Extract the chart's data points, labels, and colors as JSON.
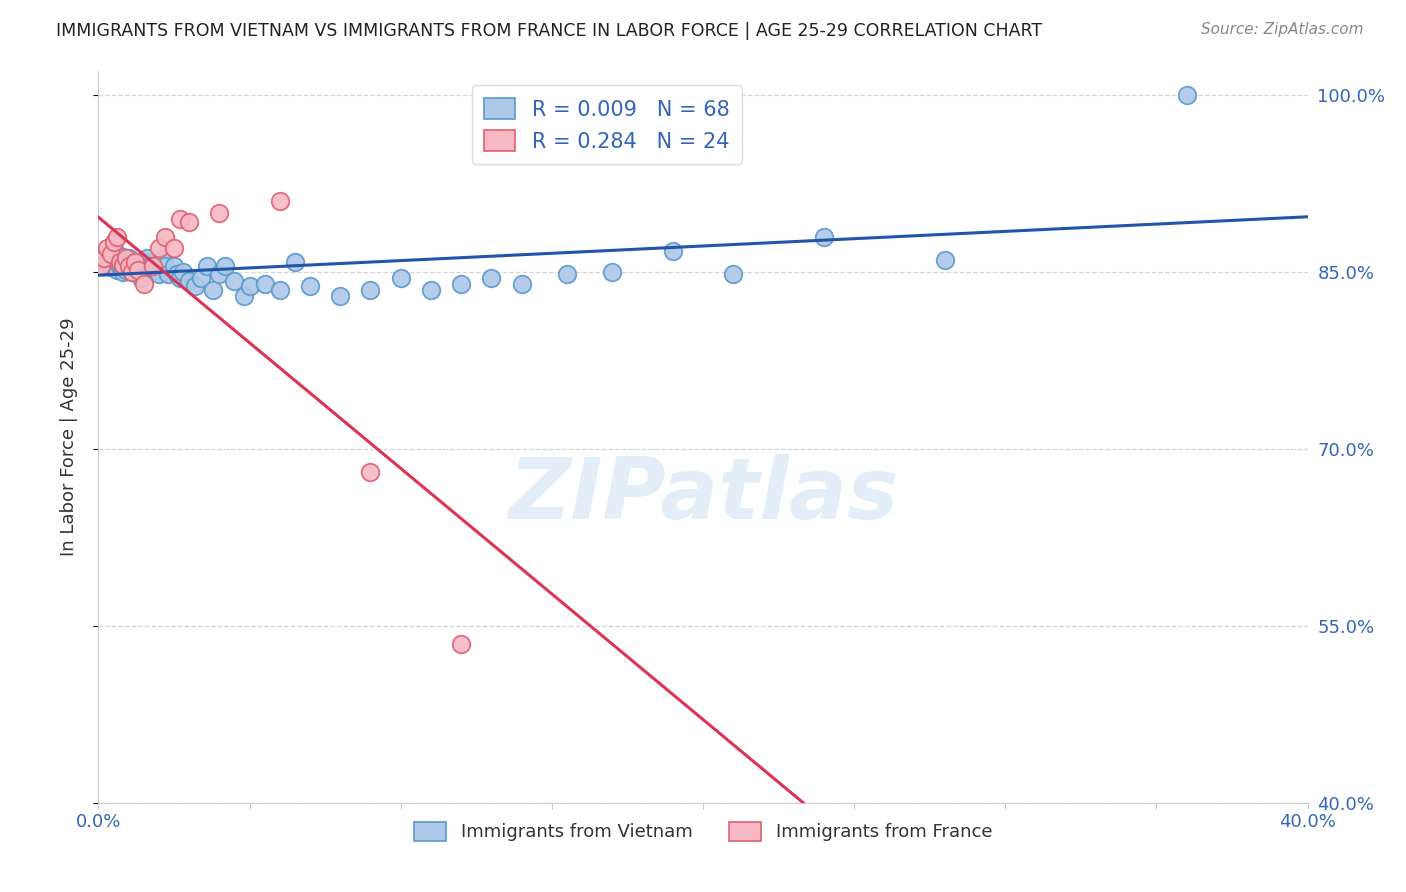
{
  "title": "IMMIGRANTS FROM VIETNAM VS IMMIGRANTS FROM FRANCE IN LABOR FORCE | AGE 25-29 CORRELATION CHART",
  "source": "Source: ZipAtlas.com",
  "ylabel": "In Labor Force | Age 25-29",
  "xlim": [
    0.0,
    0.4
  ],
  "ylim": [
    0.4,
    1.02
  ],
  "yticks": [
    0.4,
    0.55,
    0.7,
    0.85,
    1.0
  ],
  "yticklabels": [
    "40.0%",
    "55.0%",
    "70.0%",
    "85.0%",
    "100.0%"
  ],
  "xtick_positions": [
    0.0,
    0.05,
    0.1,
    0.15,
    0.2,
    0.25,
    0.3,
    0.35,
    0.4
  ],
  "xtick_labels": [
    "0.0%",
    "",
    "",
    "",
    "",
    "",
    "",
    "",
    "40.0%"
  ],
  "vietnam_color_face": "#adc8e8",
  "vietnam_color_edge": "#5a9acc",
  "france_color_face": "#f5b8c4",
  "france_color_edge": "#e06070",
  "R_vietnam": 0.009,
  "N_vietnam": 68,
  "R_france": 0.284,
  "N_france": 24,
  "trend_vietnam_color": "#2255aa",
  "trend_france_color": "#dd3355",
  "legend_label_vietnam": "Immigrants from Vietnam",
  "legend_label_france": "Immigrants from France",
  "watermark": "ZIPatlas",
  "background_color": "#ffffff",
  "grid_color": "#cccccc",
  "title_color": "#222222",
  "label_color": "#333333",
  "tick_color": "#3366bb",
  "vietnam_x": [
    0.001,
    0.002,
    0.002,
    0.003,
    0.003,
    0.004,
    0.004,
    0.005,
    0.005,
    0.005,
    0.006,
    0.006,
    0.007,
    0.007,
    0.007,
    0.008,
    0.008,
    0.008,
    0.009,
    0.009,
    0.01,
    0.01,
    0.011,
    0.011,
    0.012,
    0.013,
    0.014,
    0.015,
    0.016,
    0.017,
    0.018,
    0.019,
    0.02,
    0.021,
    0.022,
    0.023,
    0.025,
    0.026,
    0.027,
    0.028,
    0.03,
    0.032,
    0.034,
    0.036,
    0.038,
    0.04,
    0.042,
    0.045,
    0.048,
    0.05,
    0.055,
    0.06,
    0.065,
    0.07,
    0.08,
    0.09,
    0.1,
    0.11,
    0.12,
    0.13,
    0.14,
    0.155,
    0.17,
    0.19,
    0.21,
    0.24,
    0.28,
    0.36
  ],
  "vietnam_y": [
    0.86,
    0.855,
    0.862,
    0.855,
    0.858,
    0.854,
    0.86,
    0.856,
    0.862,
    0.858,
    0.852,
    0.865,
    0.854,
    0.86,
    0.856,
    0.85,
    0.858,
    0.863,
    0.852,
    0.86,
    0.856,
    0.862,
    0.85,
    0.855,
    0.858,
    0.852,
    0.845,
    0.858,
    0.862,
    0.855,
    0.855,
    0.852,
    0.848,
    0.86,
    0.855,
    0.848,
    0.855,
    0.848,
    0.845,
    0.85,
    0.842,
    0.838,
    0.845,
    0.855,
    0.835,
    0.848,
    0.855,
    0.842,
    0.83,
    0.838,
    0.84,
    0.835,
    0.858,
    0.838,
    0.83,
    0.835,
    0.845,
    0.835,
    0.84,
    0.845,
    0.84,
    0.848,
    0.85,
    0.868,
    0.848,
    0.88,
    0.86,
    1.0
  ],
  "france_x": [
    0.001,
    0.002,
    0.003,
    0.004,
    0.005,
    0.006,
    0.007,
    0.008,
    0.009,
    0.01,
    0.011,
    0.012,
    0.013,
    0.015,
    0.018,
    0.02,
    0.022,
    0.025,
    0.027,
    0.03,
    0.04,
    0.06,
    0.09,
    0.12
  ],
  "france_y": [
    0.855,
    0.862,
    0.87,
    0.865,
    0.875,
    0.88,
    0.858,
    0.856,
    0.862,
    0.855,
    0.85,
    0.858,
    0.852,
    0.84,
    0.855,
    0.87,
    0.88,
    0.87,
    0.895,
    0.892,
    0.9,
    0.91,
    0.68,
    0.535
  ]
}
